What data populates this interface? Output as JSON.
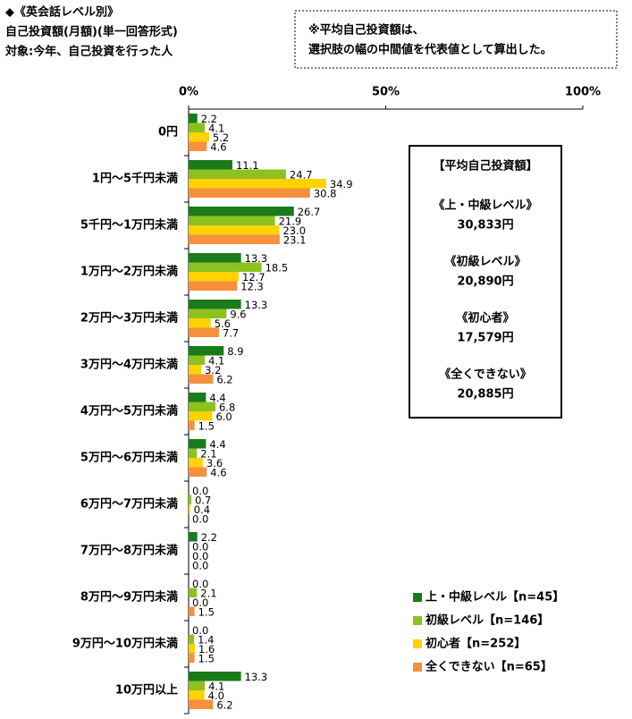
{
  "chart_data": {
    "type": "hbar",
    "title": "◆《英会話レベル別》",
    "subtitle": [
      "自己投資額(月額)(単一回答形式)",
      "対象:今年、自己投資を行った人"
    ],
    "note": [
      "※平均自己投資額は、",
      "選択肢の幅の中間値を代表値として算出した。"
    ],
    "summary": {
      "title": "【平均自己投資額】",
      "items": [
        {
          "label": "《上・中級レベル》",
          "value": "30,833円"
        },
        {
          "label": "《初級レベル》",
          "value": "20,890円"
        },
        {
          "label": "《初心者》",
          "value": "17,579円"
        },
        {
          "label": "《全くできない》",
          "value": "20,885円"
        }
      ]
    },
    "categories": [
      "0円",
      "1円～5千円未満",
      "5千円～1万円未満",
      "1万円～2万円未満",
      "2万円～3万円未満",
      "3万円～4万円未満",
      "4万円～5万円未満",
      "5万円～6万円未満",
      "6万円～7万円未満",
      "7万円～8万円未満",
      "8万円～9万円未満",
      "9万円～10万円未満",
      "10万円以上"
    ],
    "series": [
      {
        "name": "上・中級レベル【n=45】",
        "color": "#1b7a1b",
        "values": [
          2.2,
          11.1,
          26.7,
          13.3,
          13.3,
          8.9,
          4.4,
          4.4,
          0,
          2.2,
          0,
          0,
          13.3
        ],
        "value_labels": [
          "2.2",
          "11.1",
          "26.7",
          "13.3",
          "13.3",
          "8.9",
          "4.4",
          "4.4",
          "0.0",
          "2.2",
          "0.0",
          "0.0",
          "13.3"
        ]
      },
      {
        "name": "初級レベル【n=146】",
        "color": "#8cc220",
        "values": [
          4.1,
          24.7,
          21.9,
          18.5,
          9.6,
          4.1,
          6.8,
          2.1,
          0.7,
          0,
          2.1,
          1.4,
          4.1
        ],
        "value_labels": [
          "4.1",
          "24.7",
          "21.9",
          "18.5",
          "9.6",
          "4.1",
          "6.8",
          "2.1",
          "0.7",
          "0.0",
          "2.1",
          "1.4",
          "4.1"
        ]
      },
      {
        "name": "初心者【n=252】",
        "color": "#ffd200",
        "values": [
          5.2,
          34.9,
          23,
          12.7,
          5.6,
          3.2,
          6,
          3.6,
          0.4,
          0,
          0,
          1.6,
          4
        ],
        "value_labels": [
          "5.2",
          "34.9",
          "23.0",
          "12.7",
          "5.6",
          "3.2",
          "6.0",
          "3.6",
          "0.4",
          "0.0",
          "0.0",
          "1.6",
          "4.0"
        ]
      },
      {
        "name": "全くできない【n=65】",
        "color": "#f7903c",
        "values": [
          4.6,
          30.8,
          23.1,
          12.3,
          7.7,
          6.2,
          1.5,
          4.6,
          0,
          0,
          1.5,
          1.5,
          6.2
        ],
        "value_labels": [
          "4.6",
          "30.8",
          "23.1",
          "12.3",
          "7.7",
          "6.2",
          "1.5",
          "4.6",
          "0.0",
          "0.0",
          "1.5",
          "1.5",
          "6.2"
        ]
      }
    ],
    "xlim": [
      0,
      100
    ],
    "xticks": [
      {
        "value": 0,
        "label": "0%"
      },
      {
        "value": 50,
        "label": "50%"
      },
      {
        "value": 100,
        "label": "100%"
      }
    ],
    "legend": "lower right"
  }
}
